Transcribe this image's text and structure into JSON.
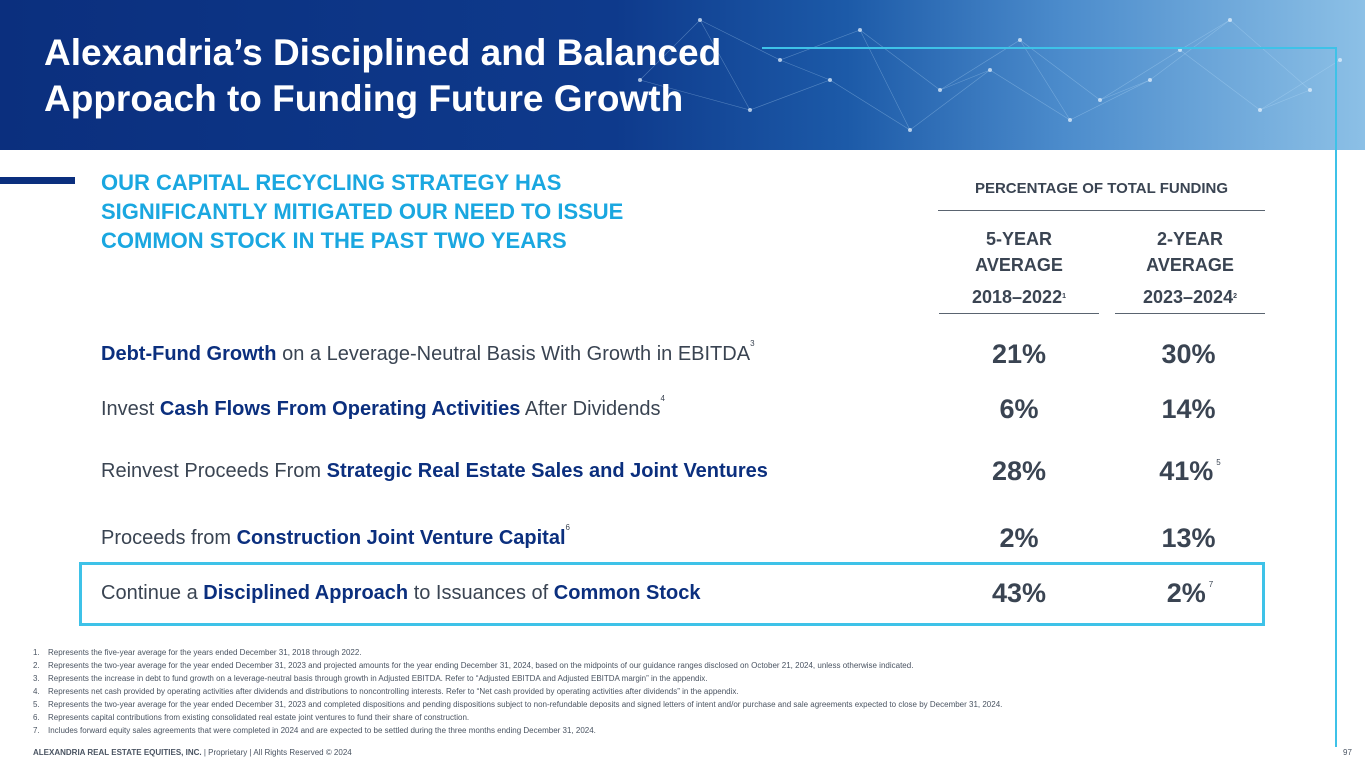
{
  "header": {
    "title_line1": "Alexandria’s Disciplined and Balanced",
    "title_line2": "Approach to Funding Future Growth"
  },
  "headline": {
    "line1": "OUR CAPITAL RECYCLING STRATEGY HAS",
    "line2": "SIGNIFICANTLY MITIGATED OUR NEED TO ISSUE",
    "line3": "COMMON STOCK IN THE PAST TWO YEARS"
  },
  "table": {
    "group_header": "PERCENTAGE OF TOTAL FUNDING",
    "col1": {
      "line1": "5-YEAR",
      "line2": "AVERAGE",
      "years": "2018–2022",
      "note": "1"
    },
    "col2": {
      "line1": "2-YEAR",
      "line2": "AVERAGE",
      "years": "2023–2024",
      "note": "2"
    },
    "rows": [
      {
        "bold1": "Debt-Fund Growth",
        "text1": " on a Leverage-Neutral Basis With Growth in EBITDA",
        "note": "3",
        "v1": "21%",
        "v2": "30%",
        "v2_note": ""
      },
      {
        "text0": "Invest ",
        "bold1": "Cash Flows From Operating Activities",
        "text1": " After Dividends",
        "note": "4",
        "v1": "6%",
        "v2": "14%",
        "v2_note": ""
      },
      {
        "text0": "Reinvest Proceeds From ",
        "bold1": "Strategic Real Estate Sales and Joint Ventures",
        "v1": "28%",
        "v2": "41%",
        "v2_note": "5"
      },
      {
        "text0": "Proceeds from ",
        "bold1": "Construction Joint Venture Capital",
        "note": "6",
        "v1": "2%",
        "v2": "13%",
        "v2_note": ""
      },
      {
        "text0": "Continue a ",
        "bold1": "Disciplined Approach",
        "text1": " to Issuances of ",
        "bold2": "Common Stock",
        "v1": "43%",
        "v2": "2%",
        "v2_note": "7"
      }
    ]
  },
  "footnotes": [
    {
      "n": "1.",
      "t": "Represents the five-year average for the years ended December 31, 2018 through 2022."
    },
    {
      "n": "2.",
      "t": "Represents the two-year average for the year ended December 31, 2023 and projected amounts for the year ending December 31, 2024, based on the midpoints of our guidance ranges disclosed on October 21, 2024, unless otherwise indicated."
    },
    {
      "n": "3.",
      "t": "Represents the increase in debt to fund growth on a leverage-neutral basis through growth in Adjusted EBITDA. Refer to “Adjusted EBITDA and Adjusted EBITDA margin” in the appendix."
    },
    {
      "n": "4.",
      "t": "Represents net cash provided by operating activities after dividends and distributions to noncontrolling interests. Refer to “Net cash provided by operating activities after dividends” in the appendix."
    },
    {
      "n": "5.",
      "t": "Represents the two-year average for the year ended December 31, 2023 and completed dispositions and pending dispositions subject to non-refundable deposits and signed letters of intent and/or purchase and sale agreements expected to close by December 31, 2024."
    },
    {
      "n": "6.",
      "t": "Represents capital contributions from existing consolidated real estate joint ventures to fund their share of construction."
    },
    {
      "n": "7.",
      "t": "Includes forward equity sales agreements that were completed in 2024 and are expected to be settled during the three months ending December 31, 2024."
    }
  ],
  "footer": {
    "company": "ALEXANDRIA REAL ESTATE EQUITIES, INC.",
    "rest": " | Proprietary | All Rights Reserved © 2024",
    "page": "97"
  }
}
